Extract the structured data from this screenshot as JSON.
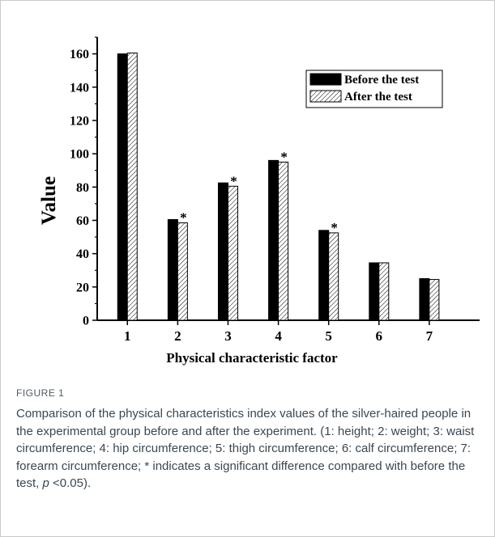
{
  "chart_data": {
    "type": "bar",
    "categories": [
      "1",
      "2",
      "3",
      "4",
      "5",
      "6",
      "7"
    ],
    "series": [
      {
        "name": "Before the test",
        "values": [
          160,
          60.5,
          82.5,
          96,
          54,
          34.5,
          25
        ],
        "color": "#000000",
        "fill": "solid"
      },
      {
        "name": "After the test",
        "values": [
          160.5,
          58.5,
          80.5,
          95,
          52.5,
          34.5,
          24.5
        ],
        "color": "#000000",
        "fill": "hatched"
      }
    ],
    "significant": [
      false,
      true,
      true,
      true,
      true,
      false,
      false
    ],
    "significance_marker": "*",
    "xlabel": "Physical characteristic factor",
    "ylabel": "Value",
    "ylim": [
      0,
      170
    ],
    "yticks": [
      0,
      20,
      40,
      60,
      80,
      100,
      120,
      140,
      160
    ],
    "legend_position": "top-right",
    "grid": false
  },
  "caption": {
    "label": "FIGURE 1",
    "text_before_p": "Comparison of the physical characteristics index values of the silver-haired people in the experimental group before and after the experiment. (1: height; 2: weight; 3: waist circumference; 4: hip circumference; 5: thigh circumference; 6: calf circumference; 7: forearm circumference; * indicates a significant difference compared with before the test, ",
    "p_symbol": "p",
    "text_after_p": " <0.05)."
  }
}
